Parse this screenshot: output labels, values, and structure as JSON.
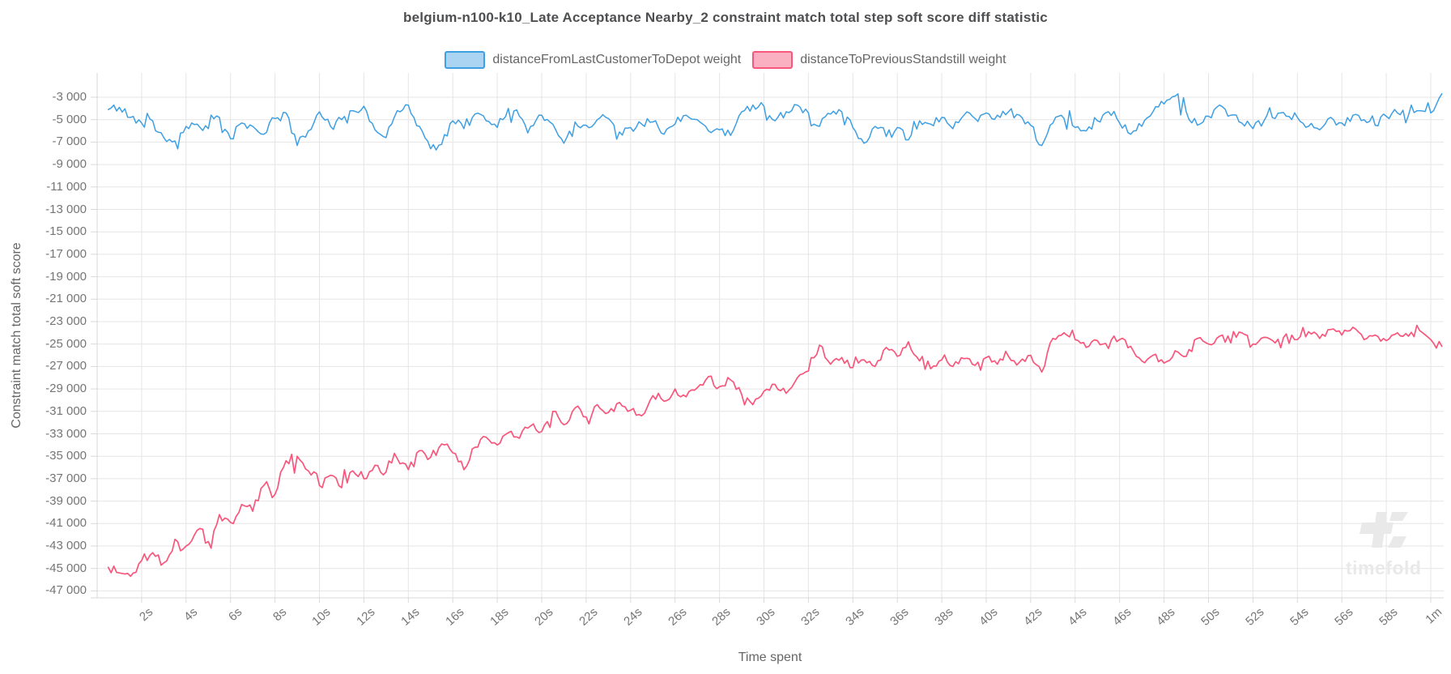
{
  "title": "belgium-n100-k10_Late Acceptance Nearby_2 constraint match total step soft score diff statistic",
  "legend": [
    {
      "label": "distanceFromLastCustomerToDepot weight",
      "line_color": "#3e9fe3",
      "fill_color": "#abd4f2"
    },
    {
      "label": "distanceToPreviousStandstill weight",
      "line_color": "#f8567b",
      "fill_color": "#fbb0c2"
    }
  ],
  "watermark": {
    "text": "timefold"
  },
  "colors": {
    "grid": "#e5e5e5",
    "axis": "#d9d9d9",
    "tick_text": "#757575",
    "title_text": "#4e4f51",
    "label_text": "#666666",
    "watermark": "#e9e9e9"
  },
  "chart_data": {
    "type": "line",
    "title": "belgium-n100-k10_Late Acceptance Nearby_2 constraint match total step soft score diff statistic",
    "xlabel": "Time spent",
    "ylabel": "Constraint match total soft score",
    "grid": true,
    "legend_position": "top",
    "x_unit": "seconds",
    "ylim": [
      -47000,
      -3000
    ],
    "xlim_seconds": [
      0,
      60.5
    ],
    "x_ticks": [
      {
        "t": 2,
        "label": "2s"
      },
      {
        "t": 4,
        "label": "4s"
      },
      {
        "t": 6,
        "label": "6s"
      },
      {
        "t": 8,
        "label": "8s"
      },
      {
        "t": 10,
        "label": "10s"
      },
      {
        "t": 12,
        "label": "12s"
      },
      {
        "t": 14,
        "label": "14s"
      },
      {
        "t": 16,
        "label": "16s"
      },
      {
        "t": 18,
        "label": "18s"
      },
      {
        "t": 20,
        "label": "20s"
      },
      {
        "t": 22,
        "label": "22s"
      },
      {
        "t": 24,
        "label": "24s"
      },
      {
        "t": 26,
        "label": "26s"
      },
      {
        "t": 28,
        "label": "28s"
      },
      {
        "t": 30,
        "label": "30s"
      },
      {
        "t": 32,
        "label": "32s"
      },
      {
        "t": 34,
        "label": "34s"
      },
      {
        "t": 36,
        "label": "36s"
      },
      {
        "t": 38,
        "label": "38s"
      },
      {
        "t": 40,
        "label": "40s"
      },
      {
        "t": 42,
        "label": "42s"
      },
      {
        "t": 44,
        "label": "44s"
      },
      {
        "t": 46,
        "label": "46s"
      },
      {
        "t": 48,
        "label": "48s"
      },
      {
        "t": 50,
        "label": "50s"
      },
      {
        "t": 52,
        "label": "52s"
      },
      {
        "t": 54,
        "label": "54s"
      },
      {
        "t": 56,
        "label": "56s"
      },
      {
        "t": 58,
        "label": "58s"
      },
      {
        "t": 60,
        "label": "1m"
      }
    ],
    "y_ticks": [
      {
        "v": -3000,
        "label": "-3 000"
      },
      {
        "v": -5000,
        "label": "-5 000"
      },
      {
        "v": -7000,
        "label": "-7 000"
      },
      {
        "v": -9000,
        "label": "-9 000"
      },
      {
        "v": -11000,
        "label": "-11 000"
      },
      {
        "v": -13000,
        "label": "-13 000"
      },
      {
        "v": -15000,
        "label": "-15 000"
      },
      {
        "v": -17000,
        "label": "-17 000"
      },
      {
        "v": -19000,
        "label": "-19 000"
      },
      {
        "v": -21000,
        "label": "-21 000"
      },
      {
        "v": -23000,
        "label": "-23 000"
      },
      {
        "v": -25000,
        "label": "-25 000"
      },
      {
        "v": -27000,
        "label": "-27 000"
      },
      {
        "v": -29000,
        "label": "-29 000"
      },
      {
        "v": -31000,
        "label": "-31 000"
      },
      {
        "v": -33000,
        "label": "-33 000"
      },
      {
        "v": -35000,
        "label": "-35 000"
      },
      {
        "v": -37000,
        "label": "-37 000"
      },
      {
        "v": -39000,
        "label": "-39 000"
      },
      {
        "v": -41000,
        "label": "-41 000"
      },
      {
        "v": -43000,
        "label": "-43 000"
      },
      {
        "v": -45000,
        "label": "-45 000"
      },
      {
        "v": -47000,
        "label": "-47 000"
      }
    ],
    "series": [
      {
        "name": "distanceFromLastCustomerToDepot weight",
        "color": "#3e9fe3",
        "points": [
          [
            0.5,
            -4100
          ],
          [
            1,
            -3900
          ],
          [
            1.5,
            -4800
          ],
          [
            2,
            -5300
          ],
          [
            2.5,
            -5100
          ],
          [
            3,
            -6600
          ],
          [
            3.5,
            -6900
          ],
          [
            4,
            -5600
          ],
          [
            4.5,
            -5400
          ],
          [
            5,
            -5800
          ],
          [
            5.5,
            -4800
          ],
          [
            6,
            -6700
          ],
          [
            6.5,
            -5300
          ],
          [
            7,
            -5600
          ],
          [
            7.5,
            -6300
          ],
          [
            8,
            -4900
          ],
          [
            8.5,
            -4400
          ],
          [
            9,
            -7300
          ],
          [
            9.5,
            -6000
          ],
          [
            10,
            -4300
          ],
          [
            10.5,
            -5600
          ],
          [
            11,
            -5000
          ],
          [
            11.5,
            -4200
          ],
          [
            12,
            -3800
          ],
          [
            12.5,
            -5900
          ],
          [
            13,
            -6600
          ],
          [
            13.5,
            -4200
          ],
          [
            14,
            -3700
          ],
          [
            14.5,
            -5600
          ],
          [
            15,
            -7600
          ],
          [
            15.5,
            -7200
          ],
          [
            16,
            -5100
          ],
          [
            16.5,
            -5800
          ],
          [
            17,
            -4500
          ],
          [
            17.5,
            -5100
          ],
          [
            18,
            -5700
          ],
          [
            18.5,
            -4000
          ],
          [
            19,
            -4700
          ],
          [
            19.5,
            -5600
          ],
          [
            20,
            -4600
          ],
          [
            20.5,
            -5400
          ],
          [
            21,
            -7100
          ],
          [
            21.5,
            -5200
          ],
          [
            22,
            -5500
          ],
          [
            22.5,
            -5000
          ],
          [
            23,
            -4900
          ],
          [
            23.5,
            -6100
          ],
          [
            24,
            -5700
          ],
          [
            24.5,
            -5400
          ],
          [
            25,
            -5200
          ],
          [
            25.5,
            -6300
          ],
          [
            26,
            -5400
          ],
          [
            26.5,
            -4600
          ],
          [
            27,
            -5000
          ],
          [
            27.5,
            -6000
          ],
          [
            28,
            -5900
          ],
          [
            28.5,
            -6400
          ],
          [
            29,
            -4300
          ],
          [
            29.5,
            -3700
          ],
          [
            30,
            -3800
          ],
          [
            30.5,
            -5100
          ],
          [
            31,
            -4300
          ],
          [
            31.5,
            -3700
          ],
          [
            32,
            -4400
          ],
          [
            32.5,
            -5600
          ],
          [
            33,
            -4500
          ],
          [
            33.5,
            -4300
          ],
          [
            34,
            -5700
          ],
          [
            34.5,
            -7100
          ],
          [
            35,
            -5600
          ],
          [
            35.5,
            -6500
          ],
          [
            36,
            -5700
          ],
          [
            36.5,
            -6800
          ],
          [
            37,
            -5100
          ],
          [
            37.5,
            -5400
          ],
          [
            38,
            -4800
          ],
          [
            38.5,
            -5800
          ],
          [
            39,
            -4600
          ],
          [
            39.5,
            -4900
          ],
          [
            40,
            -4400
          ],
          [
            40.5,
            -4600
          ],
          [
            41,
            -4300
          ],
          [
            41.5,
            -4600
          ],
          [
            42,
            -5500
          ],
          [
            42.5,
            -7300
          ],
          [
            43,
            -5300
          ],
          [
            43.5,
            -4900
          ],
          [
            44,
            -5700
          ],
          [
            44.5,
            -6000
          ],
          [
            45,
            -5100
          ],
          [
            45.5,
            -4300
          ],
          [
            46,
            -5300
          ],
          [
            46.5,
            -6300
          ],
          [
            47,
            -5600
          ],
          [
            47.5,
            -4300
          ],
          [
            48,
            -3600
          ],
          [
            48.5,
            -2900
          ],
          [
            49,
            -4300
          ],
          [
            49.5,
            -5500
          ],
          [
            50,
            -4700
          ],
          [
            50.5,
            -3700
          ],
          [
            51,
            -4600
          ],
          [
            51.5,
            -5300
          ],
          [
            52,
            -5800
          ],
          [
            52.5,
            -5100
          ],
          [
            53,
            -4900
          ],
          [
            53.5,
            -4700
          ],
          [
            54,
            -4800
          ],
          [
            54.5,
            -5600
          ],
          [
            55,
            -5900
          ],
          [
            55.5,
            -4800
          ],
          [
            56,
            -5300
          ],
          [
            56.5,
            -4600
          ],
          [
            57,
            -5000
          ],
          [
            57.5,
            -5500
          ],
          [
            58,
            -4700
          ],
          [
            58.5,
            -4400
          ],
          [
            59,
            -4600
          ],
          [
            59.5,
            -4200
          ],
          [
            60,
            -4400
          ],
          [
            60.5,
            -2700
          ]
        ]
      },
      {
        "name": "distanceToPreviousStandstill weight",
        "color": "#f8567b",
        "points": [
          [
            0.5,
            -44900
          ],
          [
            1,
            -45400
          ],
          [
            1.5,
            -45700
          ],
          [
            2,
            -44300
          ],
          [
            2.5,
            -43600
          ],
          [
            3,
            -44500
          ],
          [
            3.5,
            -42400
          ],
          [
            4,
            -43000
          ],
          [
            4.5,
            -41600
          ],
          [
            5,
            -42600
          ],
          [
            5.5,
            -40200
          ],
          [
            6,
            -40900
          ],
          [
            6.5,
            -39300
          ],
          [
            7,
            -39900
          ],
          [
            7.5,
            -37600
          ],
          [
            8,
            -38400
          ],
          [
            8.5,
            -35400
          ],
          [
            9,
            -35000
          ],
          [
            9.5,
            -36300
          ],
          [
            10,
            -37600
          ],
          [
            10.5,
            -36700
          ],
          [
            11,
            -37800
          ],
          [
            11.5,
            -36300
          ],
          [
            12,
            -37000
          ],
          [
            12.5,
            -35800
          ],
          [
            13,
            -36400
          ],
          [
            13.5,
            -35200
          ],
          [
            14,
            -36200
          ],
          [
            14.5,
            -34500
          ],
          [
            15,
            -35100
          ],
          [
            15.5,
            -33900
          ],
          [
            16,
            -34700
          ],
          [
            16.5,
            -36200
          ],
          [
            17,
            -34200
          ],
          [
            17.5,
            -33300
          ],
          [
            18,
            -34000
          ],
          [
            18.5,
            -32900
          ],
          [
            19,
            -33400
          ],
          [
            19.5,
            -32300
          ],
          [
            20,
            -32800
          ],
          [
            20.5,
            -31000
          ],
          [
            21,
            -32200
          ],
          [
            21.5,
            -30700
          ],
          [
            22,
            -31500
          ],
          [
            22.5,
            -30400
          ],
          [
            23,
            -31100
          ],
          [
            23.5,
            -30200
          ],
          [
            24,
            -30900
          ],
          [
            24.5,
            -31400
          ],
          [
            25,
            -29600
          ],
          [
            25.5,
            -30100
          ],
          [
            26,
            -29000
          ],
          [
            26.5,
            -29700
          ],
          [
            27,
            -28900
          ],
          [
            27.5,
            -27900
          ],
          [
            28,
            -28800
          ],
          [
            28.5,
            -28200
          ],
          [
            29,
            -29500
          ],
          [
            29.5,
            -30400
          ],
          [
            30,
            -29200
          ],
          [
            30.5,
            -28600
          ],
          [
            31,
            -29400
          ],
          [
            31.5,
            -28000
          ],
          [
            32,
            -27400
          ],
          [
            32.5,
            -25100
          ],
          [
            33,
            -26800
          ],
          [
            33.5,
            -26200
          ],
          [
            34,
            -27100
          ],
          [
            34.5,
            -26400
          ],
          [
            35,
            -27000
          ],
          [
            35.5,
            -25300
          ],
          [
            36,
            -26100
          ],
          [
            36.5,
            -24800
          ],
          [
            37,
            -26500
          ],
          [
            37.5,
            -27200
          ],
          [
            38,
            -26400
          ],
          [
            38.5,
            -27000
          ],
          [
            39,
            -26300
          ],
          [
            39.5,
            -26900
          ],
          [
            40,
            -26200
          ],
          [
            40.5,
            -26800
          ],
          [
            41,
            -26100
          ],
          [
            41.5,
            -26600
          ],
          [
            42,
            -26000
          ],
          [
            42.5,
            -27500
          ],
          [
            43,
            -24500
          ],
          [
            43.5,
            -24000
          ],
          [
            44,
            -24600
          ],
          [
            44.5,
            -25300
          ],
          [
            45,
            -24700
          ],
          [
            45.5,
            -25400
          ],
          [
            46,
            -24600
          ],
          [
            46.5,
            -25200
          ],
          [
            47,
            -26500
          ],
          [
            47.5,
            -26000
          ],
          [
            48,
            -26700
          ],
          [
            48.5,
            -25600
          ],
          [
            49,
            -26100
          ],
          [
            49.5,
            -24500
          ],
          [
            50,
            -25000
          ],
          [
            50.5,
            -24300
          ],
          [
            51,
            -24900
          ],
          [
            51.5,
            -24000
          ],
          [
            52,
            -25000
          ],
          [
            52.5,
            -24400
          ],
          [
            53,
            -24900
          ],
          [
            53.5,
            -24100
          ],
          [
            54,
            -24600
          ],
          [
            54.5,
            -23900
          ],
          [
            55,
            -24500
          ],
          [
            55.5,
            -23700
          ],
          [
            56,
            -24200
          ],
          [
            56.5,
            -23500
          ],
          [
            57,
            -24600
          ],
          [
            57.5,
            -24200
          ],
          [
            58,
            -24700
          ],
          [
            58.5,
            -24000
          ],
          [
            59,
            -24300
          ],
          [
            59.5,
            -23800
          ],
          [
            60,
            -24600
          ],
          [
            60.5,
            -25200
          ]
        ]
      }
    ]
  }
}
